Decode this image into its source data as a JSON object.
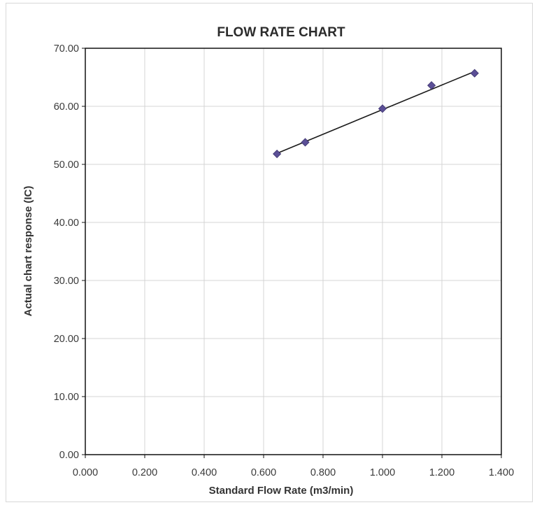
{
  "chart_data": {
    "type": "scatter",
    "title": "FLOW RATE CHART",
    "xlabel": "Standard Flow Rate (m3/min)",
    "ylabel": "Actual chart response (IC)",
    "xlim": [
      0,
      1.4
    ],
    "ylim": [
      0,
      70
    ],
    "x_ticks": [
      "0.000",
      "0.200",
      "0.400",
      "0.600",
      "0.800",
      "1.000",
      "1.200",
      "1.400"
    ],
    "y_ticks": [
      "0.00",
      "10.00",
      "20.00",
      "30.00",
      "40.00",
      "50.00",
      "60.00",
      "70.00"
    ],
    "grid": true,
    "legend": "none",
    "series": [
      {
        "x": [
          0.645,
          0.74,
          1.0,
          1.165,
          1.31
        ],
        "y": [
          51.8,
          53.8,
          59.6,
          63.6,
          65.7
        ],
        "marker": "diamond",
        "color": "#5b4f96"
      }
    ],
    "trendline": {
      "type": "linear",
      "x": [
        0.645,
        1.31
      ],
      "y": [
        51.9,
        66.0
      ],
      "color": "#1a1a1a"
    }
  }
}
